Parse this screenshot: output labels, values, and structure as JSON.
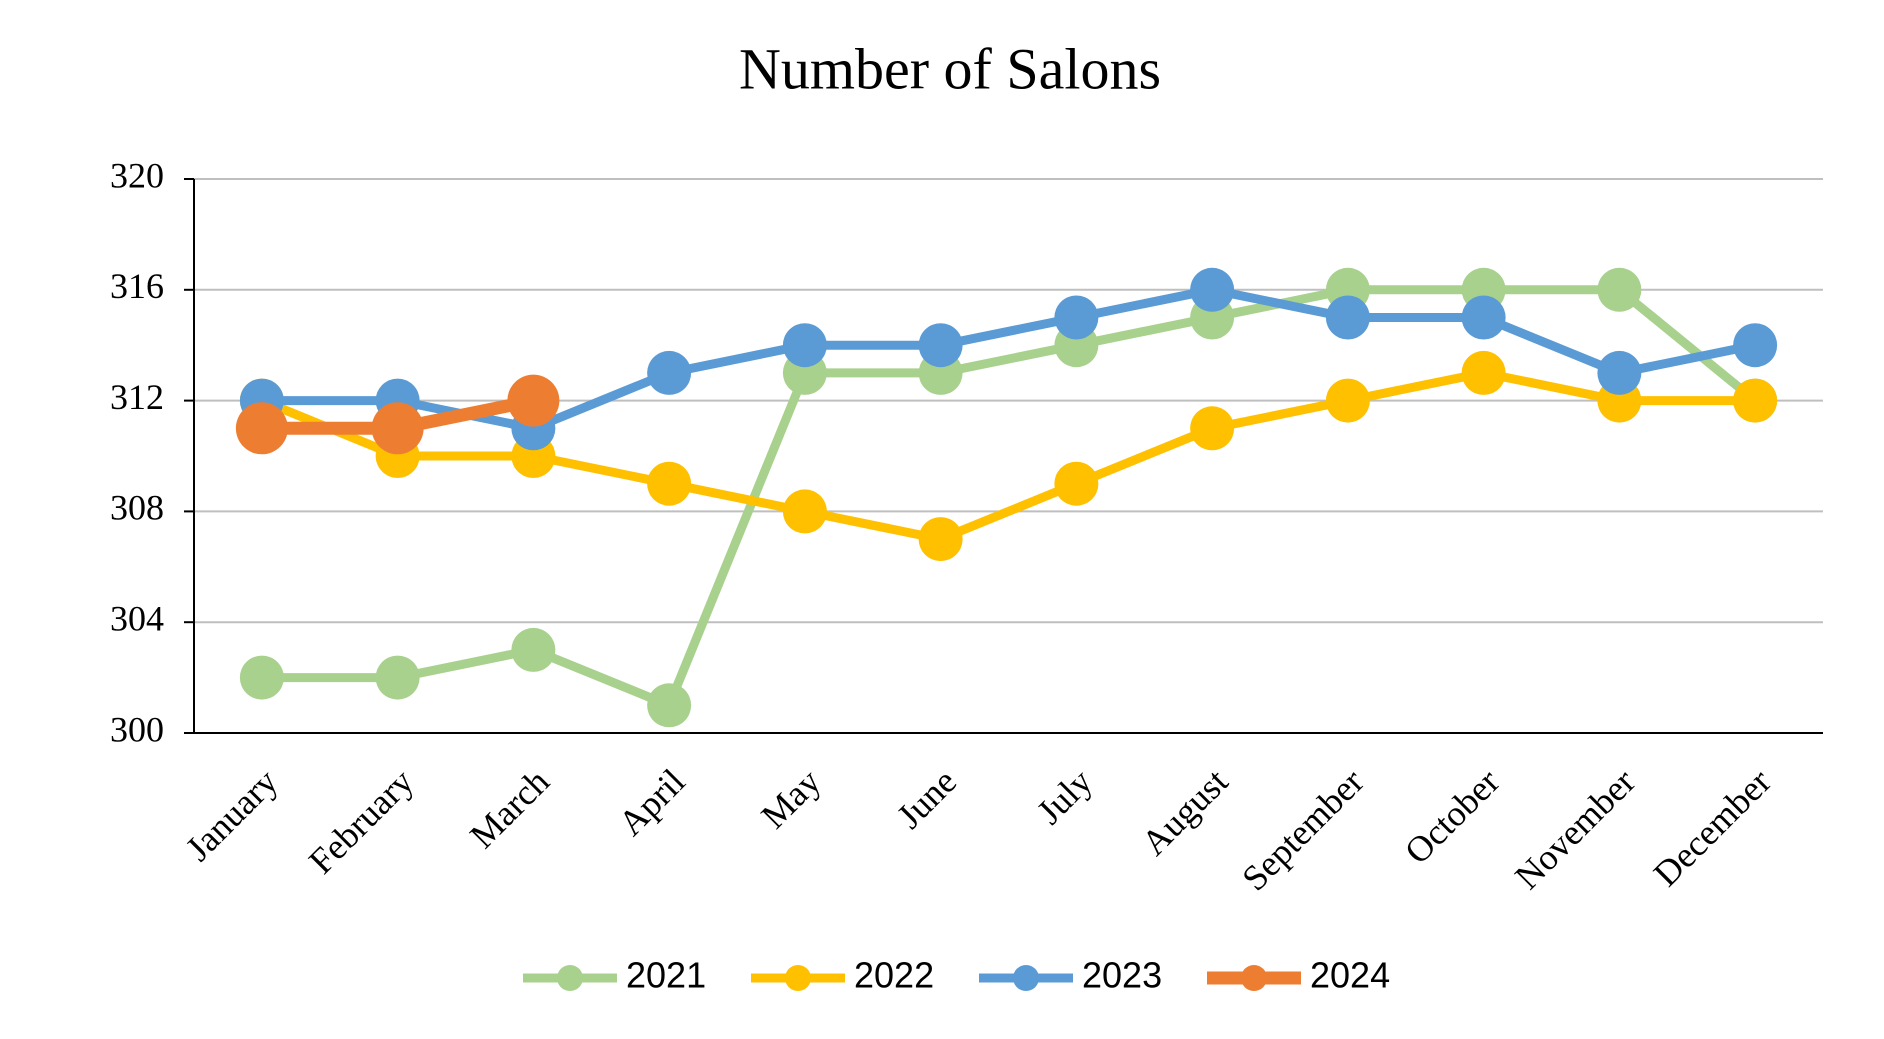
{
  "chart_data": {
    "type": "line",
    "title": "Number of Salons",
    "categories": [
      "January",
      "February",
      "March",
      "April",
      "May",
      "June",
      "July",
      "August",
      "September",
      "October",
      "November",
      "December"
    ],
    "series": [
      {
        "name": "2021",
        "color": "#a9d18e",
        "values": [
          302,
          302,
          303,
          301,
          313,
          313,
          314,
          315,
          316,
          316,
          316,
          312
        ]
      },
      {
        "name": "2022",
        "color": "#ffc000",
        "values": [
          312,
          310,
          310,
          309,
          308,
          307,
          309,
          311,
          312,
          313,
          312,
          312
        ]
      },
      {
        "name": "2023",
        "color": "#5b9bd5",
        "values": [
          312,
          312,
          311,
          313,
          314,
          314,
          315,
          316,
          315,
          315,
          313,
          314
        ]
      },
      {
        "name": "2024",
        "color": "#ed7d31",
        "values": [
          311,
          311,
          312,
          null,
          null,
          null,
          null,
          null,
          null,
          null,
          null,
          null
        ]
      }
    ],
    "ylim": [
      300,
      320
    ],
    "yticks": [
      300,
      304,
      308,
      312,
      316,
      320
    ],
    "grid": true,
    "legend": "bottom"
  }
}
